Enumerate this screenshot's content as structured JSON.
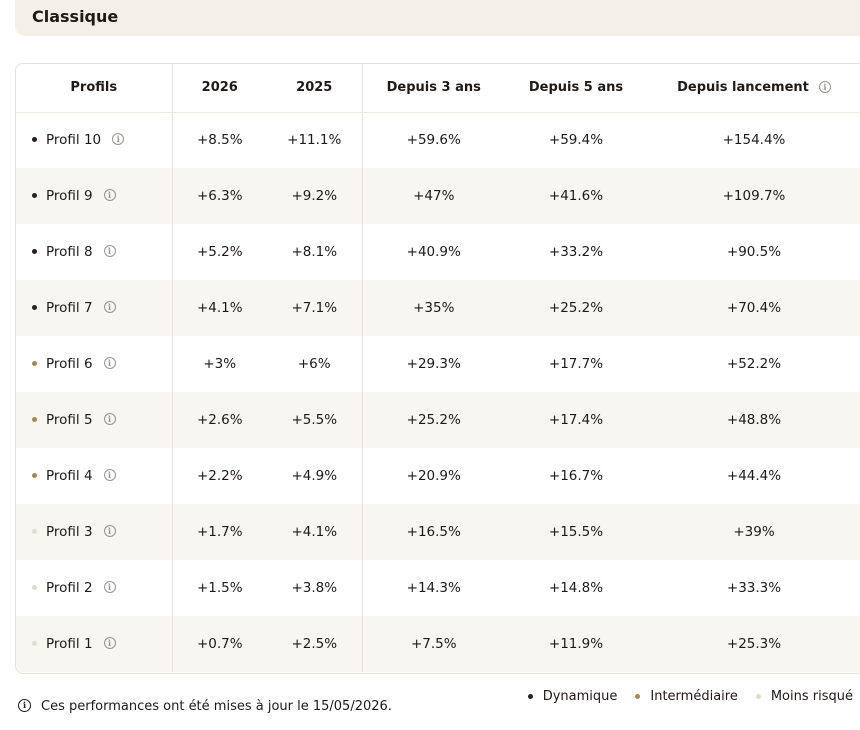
{
  "section": {
    "title": "Classique"
  },
  "colors": {
    "dynamique": "#2b1d1a",
    "intermediaire": "#a88a4e",
    "moins_risque": "#e2dcd0"
  },
  "table": {
    "headers": {
      "profils": "Profils",
      "y2026": "2026",
      "y2025": "2025",
      "depuis3": "Depuis 3 ans",
      "depuis5": "Depuis 5 ans",
      "lancement": "Depuis lancement"
    },
    "rows": [
      {
        "label": "Profil 10",
        "risk": "dynamique",
        "y2026": "+8.5%",
        "y2025": "+11.1%",
        "depuis3": "+59.6%",
        "depuis5": "+59.4%",
        "lancement": "+154.4%"
      },
      {
        "label": "Profil 9",
        "risk": "dynamique",
        "y2026": "+6.3%",
        "y2025": "+9.2%",
        "depuis3": "+47%",
        "depuis5": "+41.6%",
        "lancement": "+109.7%"
      },
      {
        "label": "Profil 8",
        "risk": "dynamique",
        "y2026": "+5.2%",
        "y2025": "+8.1%",
        "depuis3": "+40.9%",
        "depuis5": "+33.2%",
        "lancement": "+90.5%"
      },
      {
        "label": "Profil 7",
        "risk": "dynamique",
        "y2026": "+4.1%",
        "y2025": "+7.1%",
        "depuis3": "+35%",
        "depuis5": "+25.2%",
        "lancement": "+70.4%"
      },
      {
        "label": "Profil 6",
        "risk": "intermediaire",
        "y2026": "+3%",
        "y2025": "+6%",
        "depuis3": "+29.3%",
        "depuis5": "+17.7%",
        "lancement": "+52.2%"
      },
      {
        "label": "Profil 5",
        "risk": "intermediaire",
        "y2026": "+2.6%",
        "y2025": "+5.5%",
        "depuis3": "+25.2%",
        "depuis5": "+17.4%",
        "lancement": "+48.8%"
      },
      {
        "label": "Profil 4",
        "risk": "intermediaire",
        "y2026": "+2.2%",
        "y2025": "+4.9%",
        "depuis3": "+20.9%",
        "depuis5": "+16.7%",
        "lancement": "+44.4%"
      },
      {
        "label": "Profil 3",
        "risk": "moins_risque",
        "y2026": "+1.7%",
        "y2025": "+4.1%",
        "depuis3": "+16.5%",
        "depuis5": "+15.5%",
        "lancement": "+39%"
      },
      {
        "label": "Profil 2",
        "risk": "moins_risque",
        "y2026": "+1.5%",
        "y2025": "+3.8%",
        "depuis3": "+14.3%",
        "depuis5": "+14.8%",
        "lancement": "+33.3%"
      },
      {
        "label": "Profil 1",
        "risk": "moins_risque",
        "y2026": "+0.7%",
        "y2025": "+2.5%",
        "depuis3": "+7.5%",
        "depuis5": "+11.9%",
        "lancement": "+25.3%"
      }
    ]
  },
  "footer": {
    "note": "Ces performances ont été mises à jour le 15/05/2026.",
    "legend": [
      {
        "key": "dynamique",
        "label": "Dynamique"
      },
      {
        "key": "intermediaire",
        "label": "Intermédiaire"
      },
      {
        "key": "moins_risque",
        "label": "Moins risqué"
      }
    ]
  }
}
